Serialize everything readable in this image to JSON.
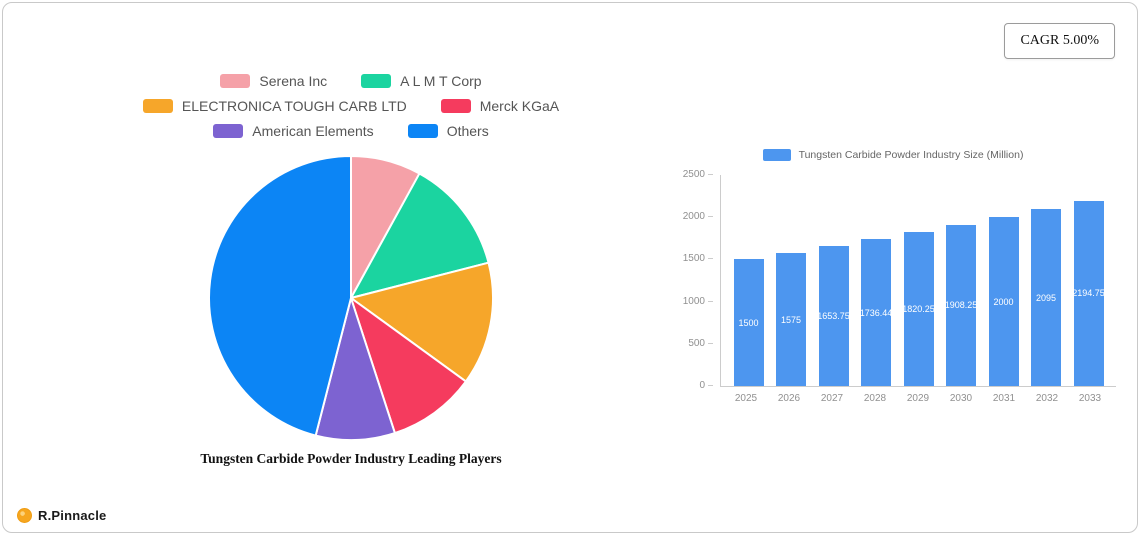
{
  "badge": {
    "label": "CAGR 5.00%"
  },
  "brand": {
    "name": "R.Pinnacle"
  },
  "chart_data": [
    {
      "type": "pie",
      "title": "Tungsten Carbide Powder Industry Leading Players",
      "labels": [
        "Serena Inc",
        "A L M T  Corp",
        "ELECTRONICA TOUGH CARB LTD",
        "Merck KGaA",
        "American Elements",
        "Others"
      ],
      "values": [
        8,
        13,
        14,
        10,
        9,
        46
      ],
      "colors": [
        "#f5a1a8",
        "#1bd4a0",
        "#f6a62a",
        "#f53b5e",
        "#7d63d1",
        "#0c85f5"
      ],
      "legend_position": "top"
    },
    {
      "type": "bar",
      "legend_label": "Tungsten Carbide Powder Industry Size (Million)",
      "categories": [
        "2025",
        "2026",
        "2027",
        "2028",
        "2029",
        "2030",
        "2031",
        "2032",
        "2033"
      ],
      "values": [
        1500,
        1575,
        1653.75,
        1736.44,
        1820.25,
        1908.25,
        2000,
        2095,
        2194.75
      ],
      "ylim": [
        0,
        2500
      ],
      "yticks": [
        0,
        500,
        1000,
        1500,
        2000,
        2500
      ],
      "bar_color": "#4d96ef",
      "grid": false,
      "legend_position": "top"
    }
  ]
}
